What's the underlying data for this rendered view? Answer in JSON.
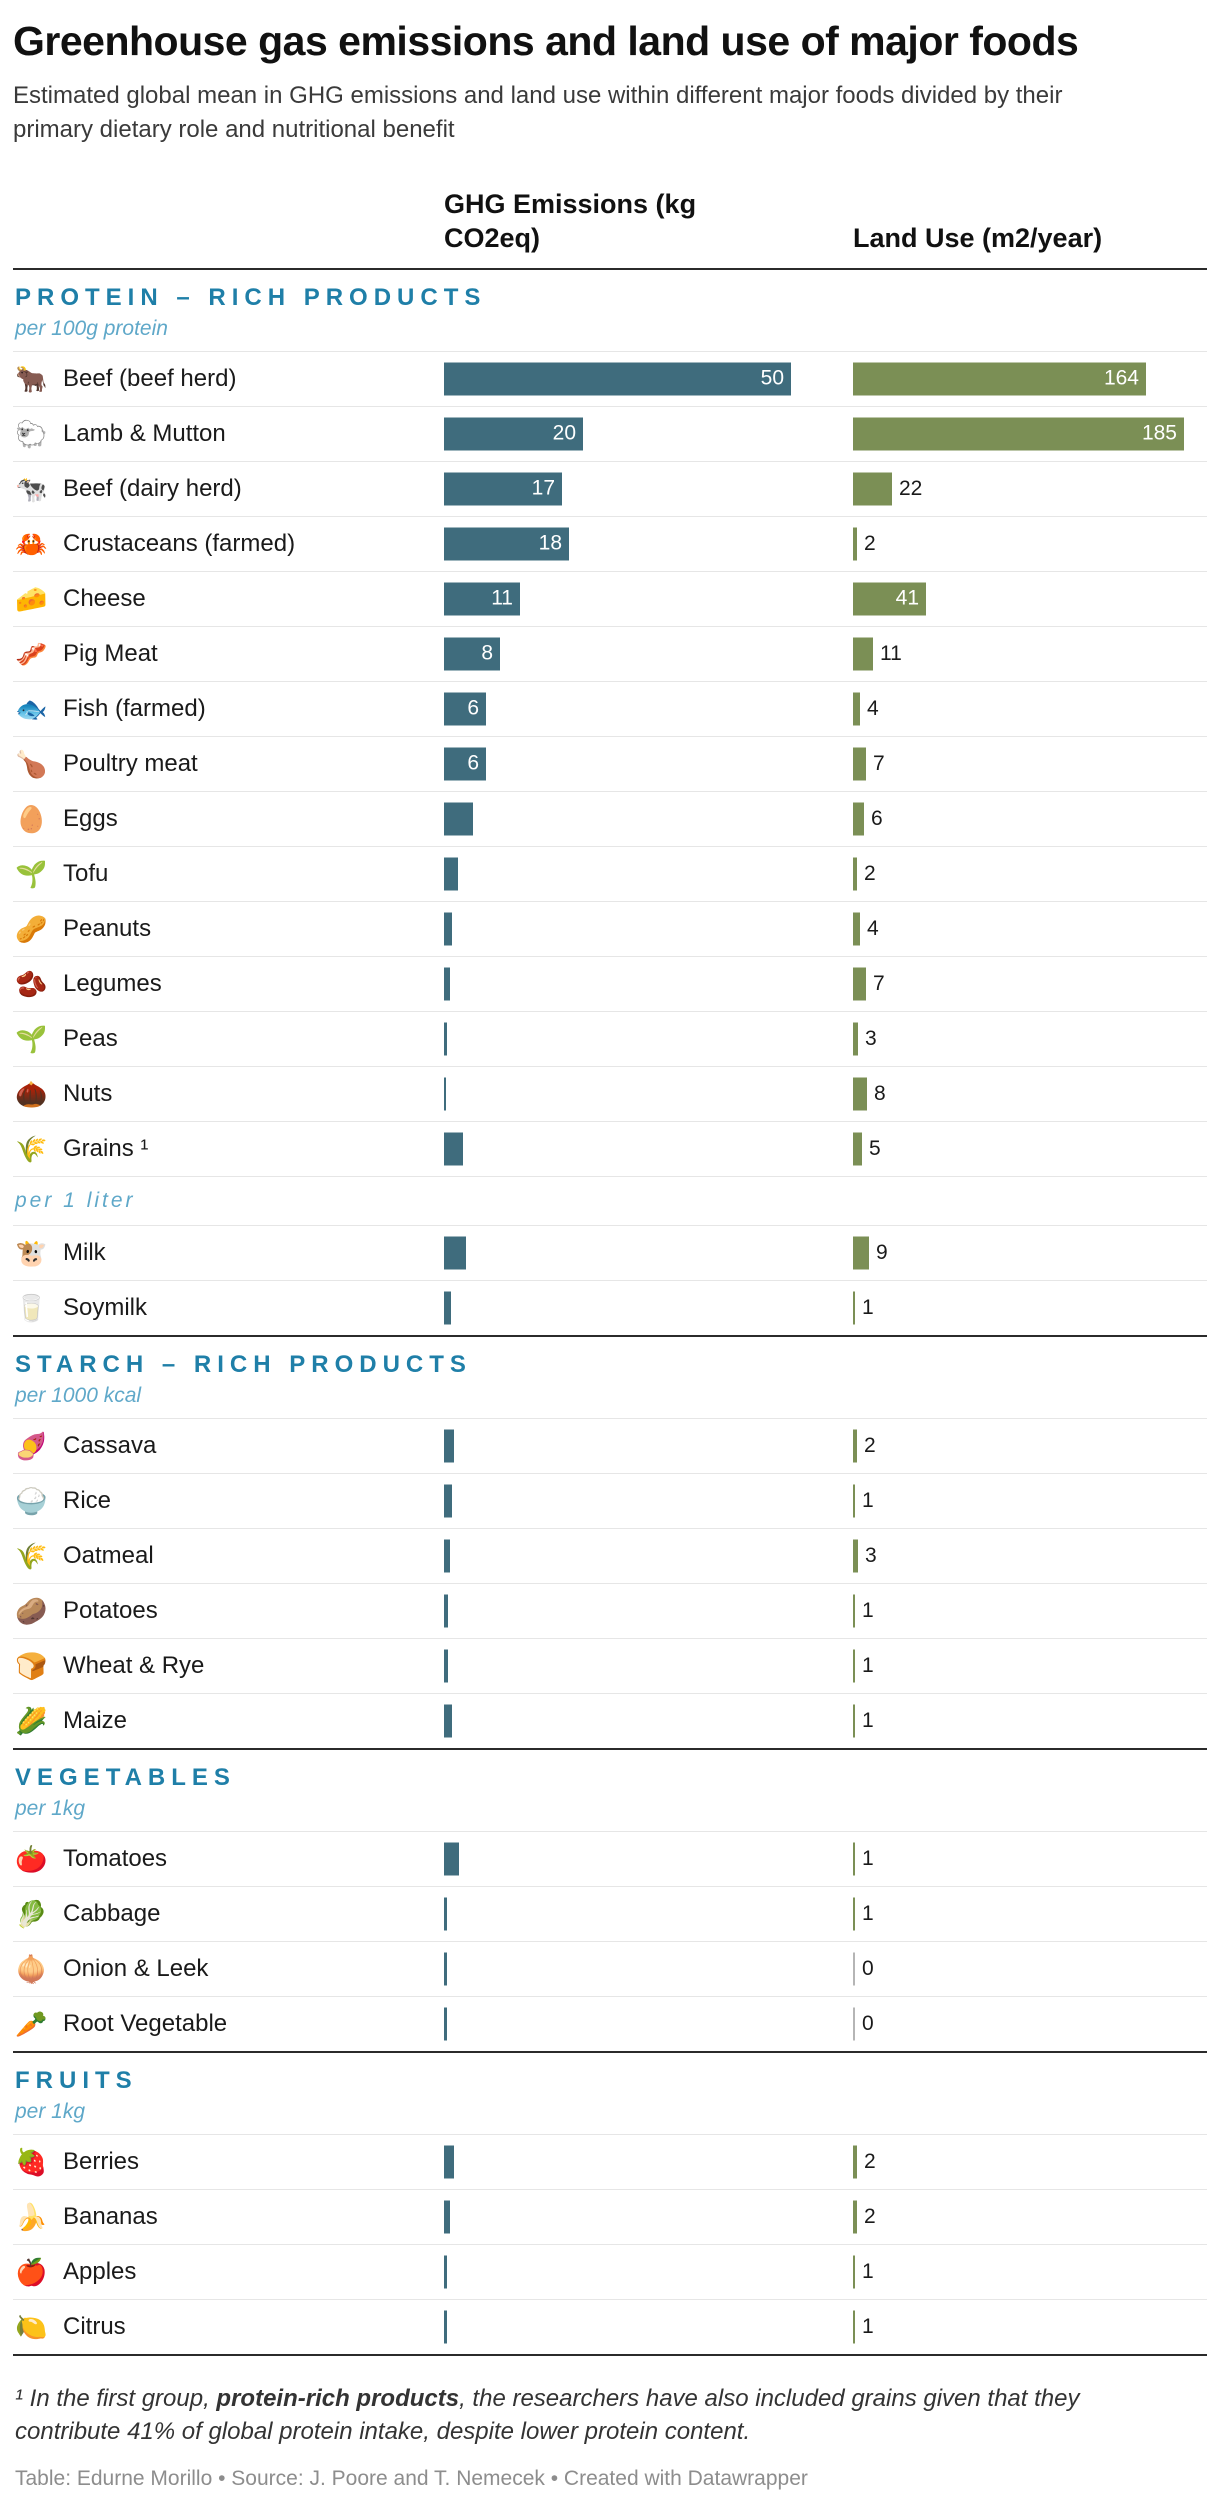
{
  "header": {
    "title": "Greenhouse gas emissions and land use of major foods",
    "subtitle": "Estimated global mean in GHG emissions and land use within different major foods divided by their primary dietary role and nutritional benefit"
  },
  "columns": {
    "ghg_label": "GHG Emissions (kg CO2eq)",
    "land_label": "Land Use (m2/year)"
  },
  "colors": {
    "ghg_bar": "#3f6c7d",
    "land_bar": "#7b8f55",
    "zero_bar": "#b5b5b5",
    "section_heading": "#1f7fa8",
    "section_unit": "#5fa8c9"
  },
  "chart_data": {
    "type": "table",
    "bar_scales": {
      "ghg_max": 50,
      "land_max": 185
    },
    "legend": "bars: GHG Emissions (kg CO2eq) teal, Land Use (m2/year) olive",
    "sections": [
      {
        "heading": "PROTEIN – RICH PRODUCTS",
        "groups": [
          {
            "unit": "per 100g protein",
            "rows": [
              {
                "icon": "🐂",
                "icon_name": "ox-icon",
                "label": "Beef (beef herd)",
                "ghg": 50,
                "ghg_label": "50",
                "land": 164,
                "land_label": "164"
              },
              {
                "icon": "🐑",
                "icon_name": "sheep-icon",
                "label": "Lamb & Mutton",
                "ghg": 20,
                "ghg_label": "20",
                "land": 185,
                "land_label": "185"
              },
              {
                "icon": "🐄",
                "icon_name": "cow-icon",
                "label": "Beef (dairy herd)",
                "ghg": 17,
                "ghg_label": "17",
                "land": 22,
                "land_label": "22"
              },
              {
                "icon": "🦀",
                "icon_name": "crab-icon",
                "label": "Crustaceans (farmed)",
                "ghg": 18,
                "ghg_label": "18",
                "land": 2,
                "land_label": "2"
              },
              {
                "icon": "🧀",
                "icon_name": "cheese-icon",
                "label": "Cheese",
                "ghg": 11,
                "ghg_label": "11",
                "land": 41,
                "land_label": "41"
              },
              {
                "icon": "🥓",
                "icon_name": "bacon-icon",
                "label": "Pig Meat",
                "ghg": 8,
                "ghg_label": "8",
                "land": 11,
                "land_label": "11"
              },
              {
                "icon": "🐟",
                "icon_name": "fish-icon",
                "label": "Fish (farmed)",
                "ghg": 6,
                "ghg_label": "6",
                "land": 4,
                "land_label": "4"
              },
              {
                "icon": "🍗",
                "icon_name": "poultry-leg-icon",
                "label": "Poultry meat",
                "ghg": 6,
                "ghg_label": "6",
                "land": 7,
                "land_label": "7"
              },
              {
                "icon": "🥚",
                "icon_name": "egg-icon",
                "label": "Eggs",
                "ghg": 4.2,
                "ghg_label": "",
                "land": 6,
                "land_label": "6"
              },
              {
                "icon": "🌱",
                "icon_name": "seedling-icon",
                "label": "Tofu",
                "ghg": 2,
                "ghg_label": "",
                "land": 2,
                "land_label": "2"
              },
              {
                "icon": "🥜",
                "icon_name": "peanuts-icon",
                "label": "Peanuts",
                "ghg": 1.2,
                "ghg_label": "",
                "land": 4,
                "land_label": "4"
              },
              {
                "icon": "🫘",
                "icon_name": "beans-icon",
                "label": "Legumes",
                "ghg": 0.8,
                "ghg_label": "",
                "land": 7,
                "land_label": "7"
              },
              {
                "icon": "🌱",
                "icon_name": "seedling-icon",
                "label": "Peas",
                "ghg": 0.4,
                "ghg_label": "",
                "land": 3,
                "land_label": "3"
              },
              {
                "icon": "🌰",
                "icon_name": "chestnut-icon",
                "label": "Nuts",
                "ghg": 0.3,
                "ghg_label": "",
                "land": 8,
                "land_label": "8"
              },
              {
                "icon": "🌾",
                "icon_name": "sheaf-icon",
                "label": "Grains ¹",
                "ghg": 2.7,
                "ghg_label": "",
                "land": 5,
                "land_label": "5"
              }
            ]
          },
          {
            "unit": "per 1 liter",
            "rows": [
              {
                "icon": "🐮",
                "icon_name": "cow-face-icon",
                "label": "Milk",
                "ghg": 3.2,
                "ghg_label": "",
                "land": 9,
                "land_label": "9"
              },
              {
                "icon": "🥛",
                "icon_name": "milk-glass-icon",
                "label": "Soymilk",
                "ghg": 1,
                "ghg_label": "",
                "land": 1,
                "land_label": "1"
              }
            ]
          }
        ]
      },
      {
        "heading": "STARCH – RICH PRODUCTS",
        "groups": [
          {
            "unit": "per 1000 kcal",
            "rows": [
              {
                "icon": "🍠",
                "icon_name": "sweet-potato-icon",
                "label": "Cassava",
                "ghg": 1.4,
                "ghg_label": "",
                "land": 2,
                "land_label": "2"
              },
              {
                "icon": "🍚",
                "icon_name": "rice-bowl-icon",
                "label": "Rice",
                "ghg": 1.2,
                "ghg_label": "",
                "land": 1,
                "land_label": "1"
              },
              {
                "icon": "🌾",
                "icon_name": "sheaf-icon",
                "label": "Oatmeal",
                "ghg": 0.9,
                "ghg_label": "",
                "land": 3,
                "land_label": "3"
              },
              {
                "icon": "🥔",
                "icon_name": "potato-icon",
                "label": "Potatoes",
                "ghg": 0.6,
                "ghg_label": "",
                "land": 1,
                "land_label": "1"
              },
              {
                "icon": "🍞",
                "icon_name": "bread-icon",
                "label": "Wheat & Rye",
                "ghg": 0.6,
                "ghg_label": "",
                "land": 1,
                "land_label": "1"
              },
              {
                "icon": "🌽",
                "icon_name": "corn-icon",
                "label": "Maize",
                "ghg": 1.1,
                "ghg_label": "",
                "land": 1,
                "land_label": "1"
              }
            ]
          }
        ]
      },
      {
        "heading": "VEGETABLES",
        "groups": [
          {
            "unit": "per 1kg",
            "rows": [
              {
                "icon": "🍅",
                "icon_name": "tomato-icon",
                "label": "Tomatoes",
                "ghg": 2.1,
                "ghg_label": "",
                "land": 1,
                "land_label": "1"
              },
              {
                "icon": "🥬",
                "icon_name": "leafy-green-icon",
                "label": "Cabbage",
                "ghg": 0.5,
                "ghg_label": "",
                "land": 1,
                "land_label": "1"
              },
              {
                "icon": "🧅",
                "icon_name": "onion-icon",
                "label": "Onion & Leek",
                "ghg": 0.5,
                "ghg_label": "",
                "land": 0,
                "land_label": "0"
              },
              {
                "icon": "🥕",
                "icon_name": "carrot-icon",
                "label": "Root Vegetable",
                "ghg": 0.4,
                "ghg_label": "",
                "land": 0,
                "land_label": "0"
              }
            ]
          }
        ]
      },
      {
        "heading": "FRUITS",
        "groups": [
          {
            "unit": "per 1kg",
            "rows": [
              {
                "icon": "🍓",
                "icon_name": "strawberry-icon",
                "label": "Berries",
                "ghg": 1.5,
                "ghg_label": "",
                "land": 2,
                "land_label": "2"
              },
              {
                "icon": "🍌",
                "icon_name": "banana-icon",
                "label": "Bananas",
                "ghg": 0.9,
                "ghg_label": "",
                "land": 2,
                "land_label": "2"
              },
              {
                "icon": "🍎",
                "icon_name": "apple-icon",
                "label": "Apples",
                "ghg": 0.4,
                "ghg_label": "",
                "land": 1,
                "land_label": "1"
              },
              {
                "icon": "🍋",
                "icon_name": "lemon-icon",
                "label": "Citrus",
                "ghg": 0.4,
                "ghg_label": "",
                "land": 1,
                "land_label": "1"
              }
            ]
          }
        ]
      }
    ]
  },
  "footnote": {
    "prefix": "¹ In the first group, ",
    "bold": "protein-rich products",
    "suffix": ", the researchers have also included grains given that they contribute 41% of global protein intake, despite lower protein content."
  },
  "footer": {
    "credit": "Table: Edurne Morillo • Source: J. Poore and T. Nemecek • Created with Datawrapper"
  }
}
